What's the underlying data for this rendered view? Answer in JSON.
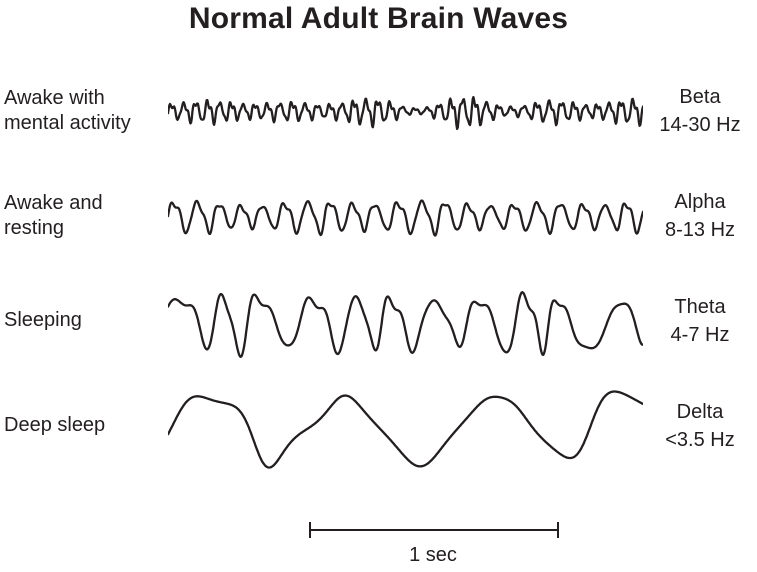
{
  "title": "Normal Adult Brain Waves",
  "ink_color": "#231f20",
  "rows": [
    {
      "condition": "Awake with\nmental activity",
      "band": "Beta",
      "range": "14-30 Hz",
      "wave": {
        "cycles": 39,
        "amplitude": 7.5,
        "seed": 11,
        "am": 0.65,
        "fm": 1.1,
        "h2": 0.25,
        "ripple": 0.3
      }
    },
    {
      "condition": "Awake and\nresting",
      "band": "Alpha",
      "range": "8-13 Hz",
      "wave": {
        "cycles": 21,
        "amplitude": 13,
        "seed": 23,
        "am": 0.5,
        "fm": 1.2,
        "h2": 0.2,
        "ripple": 0.15
      }
    },
    {
      "condition": "Sleeping",
      "band": "Theta",
      "range": "4-7 Hz",
      "wave": {
        "cycles": 11,
        "amplitude": 24,
        "seed": 5,
        "am": 0.35,
        "fm": 1.4,
        "h2": 0.25,
        "ripple": 0.12
      }
    },
    {
      "condition": "Deep sleep",
      "band": "Delta",
      "range": "<3.5 Hz",
      "wave": {
        "cycles": 3.3,
        "amplitude": 33,
        "seed": 42,
        "am": 0.2,
        "fm": 1.2,
        "h2": 0.18,
        "ripple": 0.08
      }
    }
  ],
  "scale_bar": {
    "label": "1 sec"
  }
}
